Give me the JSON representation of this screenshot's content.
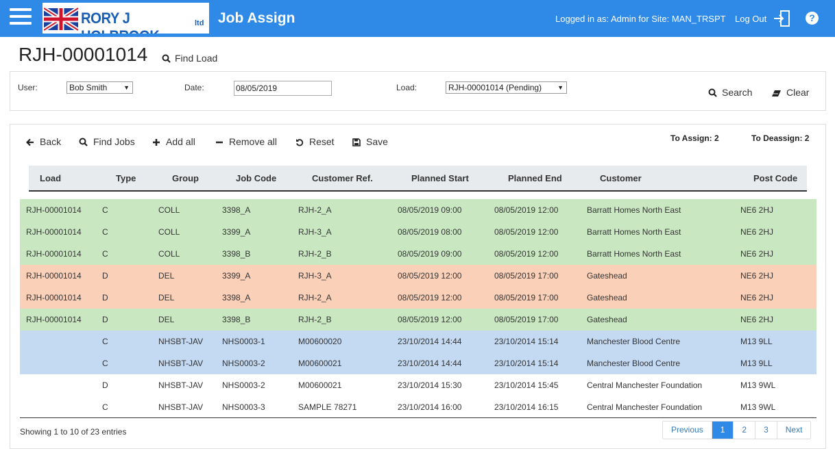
{
  "header": {
    "app_title": "Job Assign",
    "logo_text": "RORY J HOLBROOK",
    "logo_suffix": "ltd",
    "logged_in": "Logged in as: Admin for Site: MAN_TRSPT",
    "logout_label": "Log Out",
    "help_label": "?"
  },
  "page": {
    "title": "RJH-00001014",
    "find_load_label": "Find Load"
  },
  "filters": {
    "user_label": "User:",
    "user_value": "Bob Smith",
    "date_label": "Date:",
    "date_value": "08/05/2019",
    "load_label": "Load:",
    "load_value": "RJH-00001014 (Pending)",
    "search_label": "Search",
    "clear_label": "Clear"
  },
  "toolbar": {
    "back": "Back",
    "find_jobs": "Find Jobs",
    "add_all": "Add all",
    "remove_all": "Remove all",
    "reset": "Reset",
    "save": "Save",
    "to_assign": "To Assign: 2",
    "to_deassign": "To Deassign: 2"
  },
  "table": {
    "columns": [
      "Load",
      "Type",
      "Group",
      "Job Code",
      "Customer Ref.",
      "Planned Start",
      "Planned End",
      "Customer",
      "Post Code"
    ],
    "rows": [
      {
        "status": "green",
        "cells": [
          "RJH-00001014",
          "C",
          "COLL",
          "3398_A",
          "RJH-2_A",
          "08/05/2019 09:00",
          "08/05/2019 12:00",
          "Barratt Homes North East",
          "NE6 2HJ"
        ]
      },
      {
        "status": "green",
        "cells": [
          "RJH-00001014",
          "C",
          "COLL",
          "3399_A",
          "RJH-3_A",
          "08/05/2019 08:00",
          "08/05/2019 12:00",
          "Barratt Homes North East",
          "NE6 2HJ"
        ]
      },
      {
        "status": "green",
        "cells": [
          "RJH-00001014",
          "C",
          "COLL",
          "3398_B",
          "RJH-2_B",
          "08/05/2019 09:00",
          "08/05/2019 12:00",
          "Barratt Homes North East",
          "NE6 2HJ"
        ]
      },
      {
        "status": "orange",
        "cells": [
          "RJH-00001014",
          "D",
          "DEL",
          "3399_A",
          "RJH-3_A",
          "08/05/2019 12:00",
          "08/05/2019 17:00",
          "Gateshead",
          "NE6 2HJ"
        ]
      },
      {
        "status": "orange",
        "cells": [
          "RJH-00001014",
          "D",
          "DEL",
          "3398_A",
          "RJH-2_A",
          "08/05/2019 12:00",
          "08/05/2019 17:00",
          "Gateshead",
          "NE6 2HJ"
        ]
      },
      {
        "status": "green",
        "cells": [
          "RJH-00001014",
          "D",
          "DEL",
          "3398_B",
          "RJH-2_B",
          "08/05/2019 12:00",
          "08/05/2019 17:00",
          "Gateshead",
          "NE6 2HJ"
        ]
      },
      {
        "status": "blue",
        "cells": [
          "",
          "C",
          "NHSBT-JAV",
          "NHS0003-1",
          "M00600020",
          "23/10/2014 14:44",
          "23/10/2014 15:14",
          "Manchester Blood Centre",
          "M13 9LL"
        ]
      },
      {
        "status": "blue",
        "cells": [
          "",
          "C",
          "NHSBT-JAV",
          "NHS0003-2",
          "M00600021",
          "23/10/2014 14:44",
          "23/10/2014 15:14",
          "Manchester Blood Centre",
          "M13 9LL"
        ]
      },
      {
        "status": "white",
        "cells": [
          "",
          "D",
          "NHSBT-JAV",
          "NHS0003-2",
          "M00600021",
          "23/10/2014 15:30",
          "23/10/2014 15:45",
          "Central Manchester Foundation",
          "M13 9WL"
        ]
      },
      {
        "status": "white",
        "cells": [
          "",
          "C",
          "NHSBT-JAV",
          "NHS0003-3",
          "SAMPLE 78271",
          "23/10/2014 16:00",
          "23/10/2014 16:15",
          "Central Manchester Foundation",
          "M13 9WL"
        ]
      }
    ]
  },
  "footer": {
    "showing": "Showing 1 to 10 of 23 entries",
    "pagination": [
      "Previous",
      "1",
      "2",
      "3",
      "Next"
    ],
    "active_page": "1"
  },
  "colors": {
    "header_bg": "#2e8ae6",
    "assign_row": "#c9e8c1",
    "deassign_row": "#fad0b8",
    "unassigned_row": "#c4d9f2"
  }
}
